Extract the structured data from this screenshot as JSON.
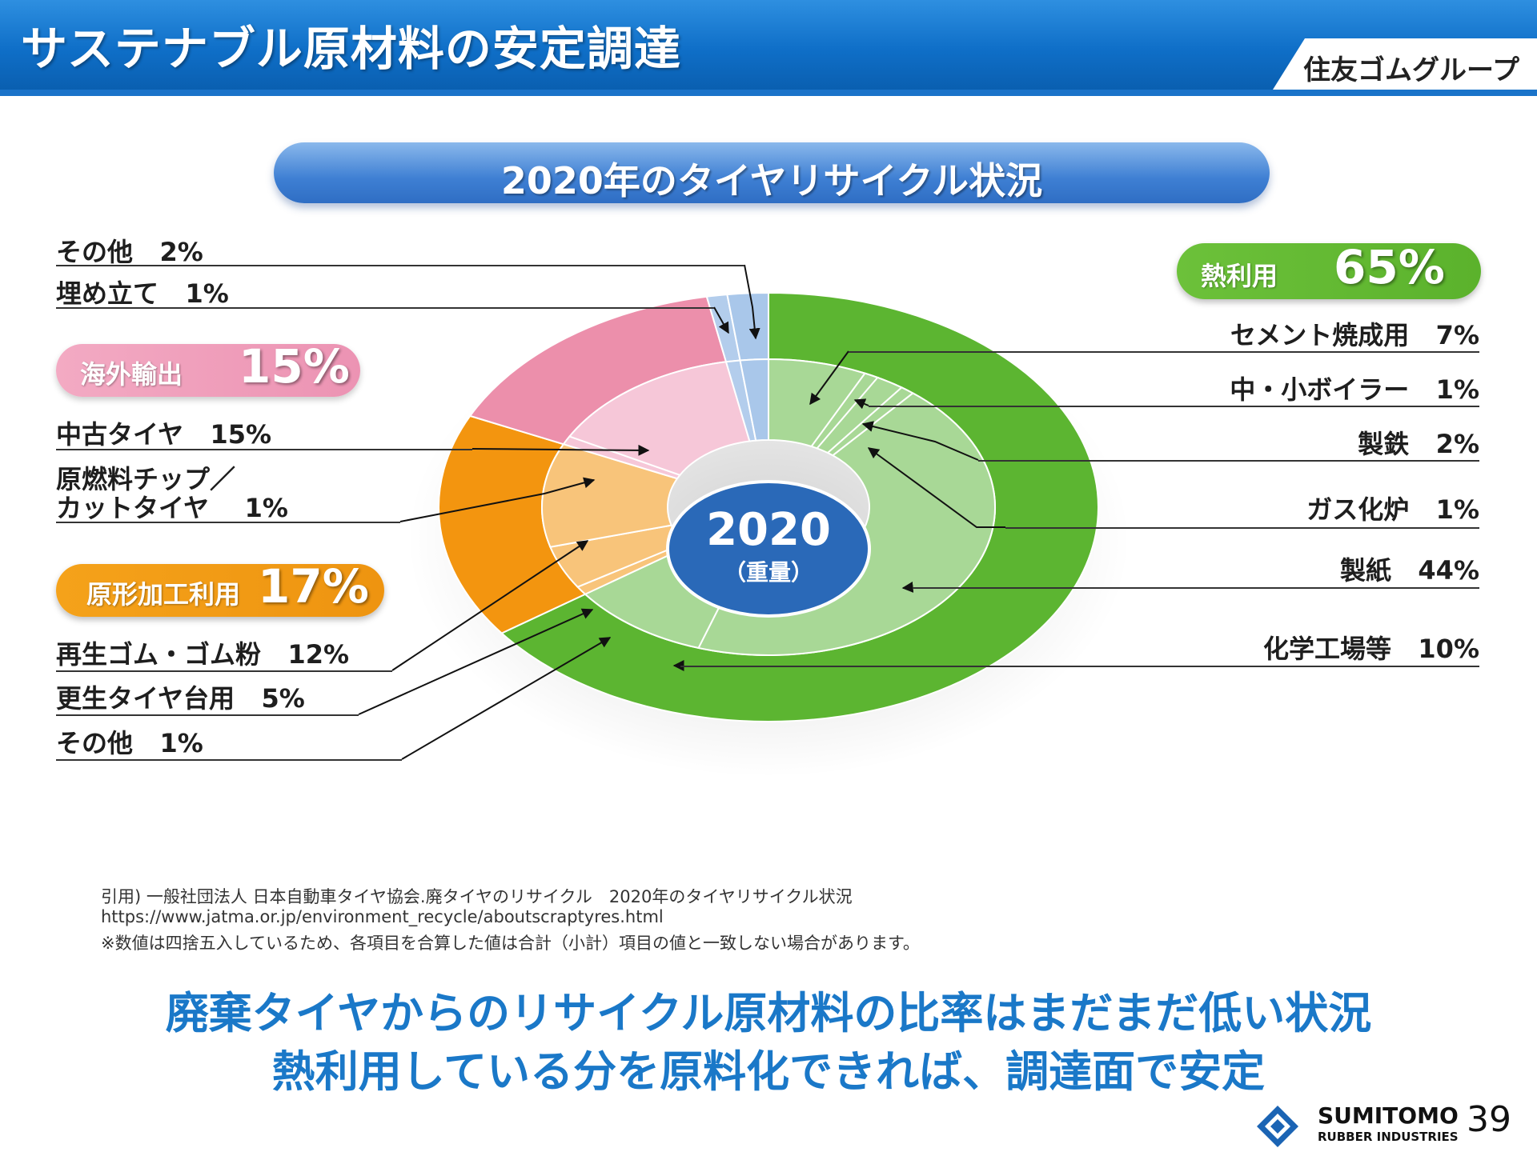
{
  "header": {
    "title": "サステナブル原材料の安定調達",
    "group": "住友ゴムグループ"
  },
  "chart_data": {
    "type": "pie",
    "title": "2020年のタイヤリサイクル状況",
    "center_label": "2020",
    "center_sub": "（重量）",
    "groups": [
      {
        "name": "熱利用",
        "value_label": "65%",
        "value": 65,
        "color": "#5cb531",
        "inner_color": "#a8d896",
        "items": [
          {
            "name": "セメント焼成用",
            "label": "7%",
            "value": 7
          },
          {
            "name": "中・小ボイラー",
            "label": "1%",
            "value": 1
          },
          {
            "name": "製鉄",
            "label": "2%",
            "value": 2
          },
          {
            "name": "ガス化炉",
            "label": "1%",
            "value": 1
          },
          {
            "name": "製紙",
            "label": "44%",
            "value": 44
          },
          {
            "name": "化学工場等",
            "label": "10%",
            "value": 10
          }
        ]
      },
      {
        "name": "原形加工利用",
        "value_label": "17%",
        "value": 17,
        "color": "#f3950f",
        "inner_color": "#f8c47a",
        "items": [
          {
            "name": "その他",
            "label": "1%",
            "value": 1
          },
          {
            "name": "更生タイヤ台用",
            "label": "5%",
            "value": 5
          },
          {
            "name": "再生ゴム・ゴム粉",
            "label": "12%",
            "value": 12
          }
        ]
      },
      {
        "name": "海外輸出",
        "value_label": "15%",
        "value": 15,
        "color": "#ec8fab",
        "inner_color": "#f6c7d8",
        "items": [
          {
            "name": "原燃料チップ／カットタイヤ",
            "label": "1%",
            "value": 1
          },
          {
            "name": "中古タイヤ",
            "label": "15%",
            "value": 15
          }
        ]
      },
      {
        "name": "埋め立て",
        "value_label": "1%",
        "value": 1,
        "color": "#b3cdec",
        "inner_color": "#b3cdec",
        "items": []
      },
      {
        "name": "その他",
        "value_label": "2%",
        "value": 2,
        "color": "#a9c7ea",
        "inner_color": "#a9c7ea",
        "items": []
      }
    ]
  },
  "labels": {
    "other_top": "その他",
    "other_top_pct": "2%",
    "landfill": "埋め立て",
    "landfill_pct": "1%",
    "export": "海外輸出",
    "export_pct": "15%",
    "used_tire": "中古タイヤ",
    "used_tire_pct": "15%",
    "chip_line1": "原燃料チップ／",
    "chip_line2": "カットタイヤ",
    "chip_pct": "1%",
    "reuse": "原形加工利用",
    "reuse_pct": "17%",
    "reclaim": "再生ゴム・ゴム粉",
    "reclaim_pct": "12%",
    "retread": "更生タイヤ台用",
    "retread_pct": "5%",
    "other_bottom": "その他",
    "other_bottom_pct": "1%",
    "heat": "熱利用",
    "heat_pct": "65%",
    "cement": "セメント焼成用",
    "cement_pct": "7%",
    "boiler": "中・小ボイラー",
    "boiler_pct": "1%",
    "steel": "製鉄",
    "steel_pct": "2%",
    "gasifier": "ガス化炉",
    "gasifier_pct": "1%",
    "paper": "製紙",
    "paper_pct": "44%",
    "chemical": "化学工場等",
    "chemical_pct": "10%"
  },
  "source": {
    "line1": "引用) 一般社団法人 日本自動車タイヤ協会.廃タイヤのリサイクル　2020年のタイヤリサイクル状況",
    "line2": "https://www.jatma.or.jp/environment_recycle/aboutscraptyres.html",
    "line3": "※数値は四捨五入しているため、各項目を合算した値は合計（小計）項目の値と一致しない場合があります。"
  },
  "conclusion": {
    "line1": "廃棄タイヤからのリサイクル原材料の比率はまだまだ低い状況",
    "line2": "熱利用している分を原料化できれば、調達面で安定"
  },
  "footer": {
    "logo_name": "SUMITOMO",
    "logo_sub": "RUBBER INDUSTRIES",
    "page": "39"
  }
}
